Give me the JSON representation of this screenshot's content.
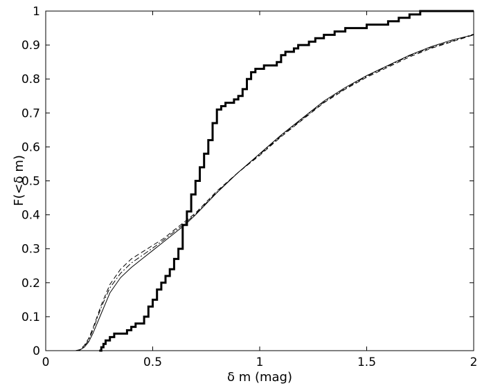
{
  "chart_data": {
    "type": "line",
    "title": "",
    "xlabel": "δ m (mag)",
    "ylabel": "F(<δ m)",
    "xlim": [
      0,
      2
    ],
    "ylim": [
      0,
      1
    ],
    "xticks": [
      "0",
      "0.5",
      "1",
      "1.5",
      "2"
    ],
    "yticks": [
      "0",
      "0.1",
      "0.2",
      "0.3",
      "0.4",
      "0.5",
      "0.6",
      "0.7",
      "0.8",
      "0.9",
      "1"
    ],
    "grid": false,
    "legend": "none",
    "series": [
      {
        "style": "thick-step",
        "color": "#000000",
        "x": [
          0.25,
          0.26,
          0.27,
          0.28,
          0.3,
          0.32,
          0.34,
          0.36,
          0.38,
          0.4,
          0.42,
          0.44,
          0.46,
          0.48,
          0.5,
          0.52,
          0.54,
          0.56,
          0.58,
          0.6,
          0.62,
          0.64,
          0.66,
          0.68,
          0.7,
          0.72,
          0.74,
          0.76,
          0.78,
          0.8,
          0.82,
          0.84,
          0.86,
          0.88,
          0.9,
          0.92,
          0.94,
          0.96,
          0.98,
          1.0,
          1.02,
          1.04,
          1.06,
          1.08,
          1.1,
          1.12,
          1.14,
          1.16,
          1.18,
          1.2,
          1.23,
          1.26,
          1.3,
          1.35,
          1.4,
          1.45,
          1.5,
          1.55,
          1.6,
          1.65,
          1.7,
          1.75,
          2.0
        ],
        "y": [
          0.0,
          0.01,
          0.02,
          0.03,
          0.04,
          0.05,
          0.05,
          0.05,
          0.06,
          0.07,
          0.08,
          0.08,
          0.1,
          0.13,
          0.15,
          0.18,
          0.2,
          0.22,
          0.24,
          0.27,
          0.3,
          0.37,
          0.41,
          0.46,
          0.5,
          0.54,
          0.58,
          0.62,
          0.67,
          0.71,
          0.72,
          0.73,
          0.73,
          0.74,
          0.75,
          0.77,
          0.8,
          0.82,
          0.83,
          0.83,
          0.84,
          0.84,
          0.84,
          0.85,
          0.87,
          0.88,
          0.88,
          0.89,
          0.9,
          0.9,
          0.91,
          0.92,
          0.93,
          0.94,
          0.95,
          0.95,
          0.96,
          0.96,
          0.97,
          0.98,
          0.99,
          1.0,
          1.0
        ]
      },
      {
        "style": "thin-solid",
        "color": "#000000",
        "x": [
          0.14,
          0.16,
          0.18,
          0.2,
          0.22,
          0.24,
          0.26,
          0.28,
          0.3,
          0.35,
          0.4,
          0.45,
          0.5,
          0.55,
          0.6,
          0.65,
          0.7,
          0.8,
          0.9,
          1.0,
          1.1,
          1.2,
          1.3,
          1.4,
          1.5,
          1.6,
          1.7,
          1.8,
          1.9,
          2.0
        ],
        "y": [
          0.0,
          0.002,
          0.01,
          0.025,
          0.05,
          0.08,
          0.11,
          0.14,
          0.17,
          0.215,
          0.245,
          0.27,
          0.295,
          0.32,
          0.345,
          0.37,
          0.4,
          0.465,
          0.525,
          0.58,
          0.635,
          0.685,
          0.735,
          0.775,
          0.81,
          0.84,
          0.87,
          0.895,
          0.915,
          0.93
        ]
      },
      {
        "style": "thin-dashed",
        "color": "#000000",
        "x": [
          0.14,
          0.16,
          0.18,
          0.2,
          0.22,
          0.24,
          0.26,
          0.28,
          0.3,
          0.35,
          0.4,
          0.45,
          0.5,
          0.55,
          0.6,
          0.65,
          0.7,
          0.8,
          0.9,
          1.0,
          1.1,
          1.2,
          1.3,
          1.4,
          1.5,
          1.6,
          1.7,
          1.8,
          1.9,
          2.0
        ],
        "y": [
          0.0,
          0.003,
          0.015,
          0.035,
          0.065,
          0.1,
          0.135,
          0.165,
          0.195,
          0.24,
          0.27,
          0.29,
          0.31,
          0.33,
          0.355,
          0.38,
          0.405,
          0.47,
          0.525,
          0.575,
          0.63,
          0.68,
          0.73,
          0.77,
          0.805,
          0.835,
          0.865,
          0.89,
          0.91,
          0.93
        ]
      },
      {
        "style": "thin-dashdot",
        "color": "#000000",
        "x": [
          0.14,
          0.16,
          0.18,
          0.2,
          0.22,
          0.24,
          0.26,
          0.28,
          0.3,
          0.35,
          0.4,
          0.45,
          0.5,
          0.55,
          0.6,
          0.65,
          0.7,
          0.8,
          0.9,
          1.0,
          1.1,
          1.2,
          1.3,
          1.4,
          1.5,
          1.6,
          1.7,
          1.8,
          1.9,
          2.0
        ],
        "y": [
          0.0,
          0.002,
          0.013,
          0.03,
          0.06,
          0.095,
          0.128,
          0.157,
          0.185,
          0.228,
          0.258,
          0.28,
          0.302,
          0.325,
          0.35,
          0.375,
          0.402,
          0.467,
          0.525,
          0.578,
          0.632,
          0.682,
          0.732,
          0.772,
          0.808,
          0.838,
          0.868,
          0.892,
          0.912,
          0.932
        ]
      }
    ]
  }
}
